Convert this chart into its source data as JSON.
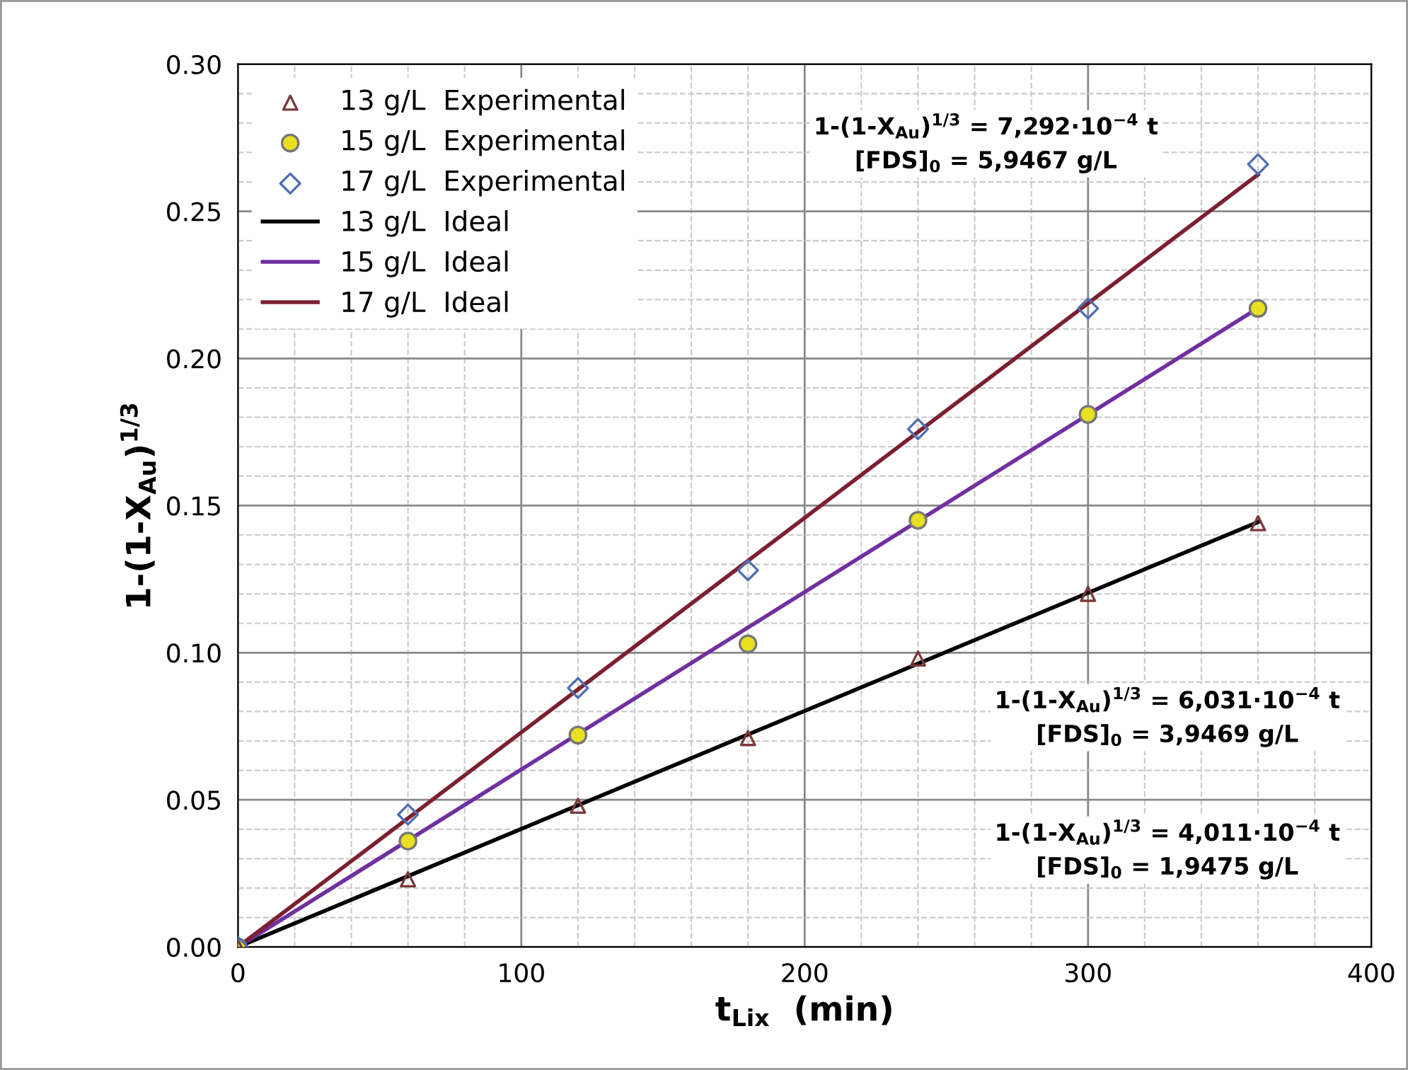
{
  "chart_data": {
    "type": "scatter",
    "xlabel": "t$_{Lix}$  (min)",
    "ylabel": "1-(1-X$_{Au}$)$^{1/3}$",
    "xlim": [
      0,
      400
    ],
    "xticks": [
      0,
      100,
      200,
      300,
      400
    ],
    "ylim": [
      0,
      0.3
    ],
    "yticks": [
      {
        "value": 0,
        "label": "0.00"
      },
      {
        "value": 0.05,
        "label": "0.05"
      },
      {
        "value": 0.1,
        "label": "0.10"
      },
      {
        "value": 0.15,
        "label": "0.15"
      },
      {
        "value": 0.2,
        "label": "0.20"
      },
      {
        "value": 0.25,
        "label": "0.25"
      },
      {
        "value": 0.3,
        "label": "0.30"
      }
    ],
    "grid": true,
    "legend": "top left",
    "series": [
      {
        "name": "13 g/L  Experimental",
        "marker": "triangle",
        "color": "#7b3a3a",
        "x": [
          0,
          60,
          120,
          180,
          240,
          300,
          360
        ],
        "values": [
          0,
          0.023,
          0.048,
          0.071,
          0.098,
          0.12,
          0.144
        ]
      },
      {
        "name": "15 g/L  Experimental",
        "marker": "circle",
        "color": "#e8e020",
        "x": [
          0,
          60,
          120,
          180,
          240,
          300,
          360
        ],
        "values": [
          0,
          0.036,
          0.072,
          0.103,
          0.145,
          0.181,
          0.217
        ]
      },
      {
        "name": "17 g/L  Experimental",
        "marker": "diamond",
        "color": "#4f6fb0",
        "x": [
          0,
          60,
          120,
          180,
          240,
          300,
          360
        ],
        "values": [
          0,
          0.045,
          0.088,
          0.128,
          0.176,
          0.217,
          0.266
        ]
      },
      {
        "name": "13 g/L  Ideal",
        "type": "line",
        "marker": "none",
        "color": "#000000",
        "x": [
          0,
          360
        ],
        "values": [
          0,
          0.1444
        ]
      },
      {
        "name": "15 g/L  Ideal",
        "type": "line",
        "marker": "none",
        "color": "#7030a0",
        "x": [
          0,
          360
        ],
        "values": [
          0,
          0.2171
        ]
      },
      {
        "name": "17 g/L  Ideal",
        "type": "line",
        "marker": "none",
        "color": "#7b2030",
        "x": [
          0,
          360
        ],
        "values": [
          0,
          0.2625
        ]
      }
    ],
    "annotations": [
      "1-(1-X$_{Au}$)$^{1/3}$ = 7,292·10$^{−4}$ t\n[FDS]$_{0}$ = 5,9467 g/L",
      "1-(1-X$_{Au}$)$^{1/3}$ = 6,031·10$^{−4}$ t\n[FDS]$_{0}$ = 3,9469 g/L",
      "1-(1-X$_{Au}$)$^{1/3}$ = 4,011·10$^{−4}$ t\n[FDS]$_{0}$ = 1,9475 g/L"
    ]
  }
}
